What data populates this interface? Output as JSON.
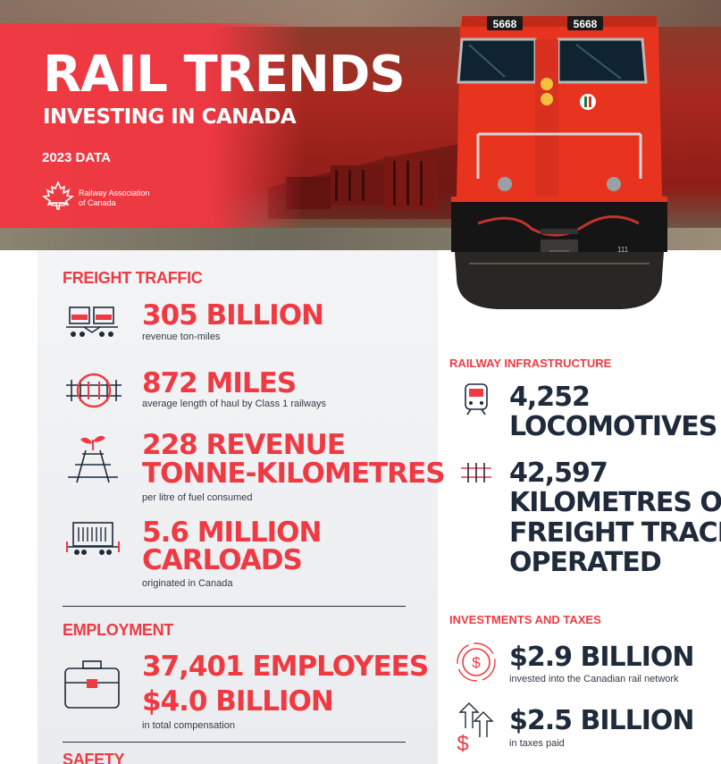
{
  "hero": {
    "title": "RAIL TRENDS",
    "subtitle": "INVESTING IN CANADA",
    "year_label": "2023 DATA",
    "org_line1": "Railway Association",
    "org_line2": "of Canada",
    "loco_number_left": "5668",
    "loco_number_right": "5668",
    "loco_plate": "111"
  },
  "freight": {
    "heading": "FREIGHT TRAFFIC",
    "items": [
      {
        "icon": "freight-wagon-icon",
        "lines": [
          "305 BILLION"
        ],
        "caption": "revenue ton-miles"
      },
      {
        "icon": "track-distance-icon",
        "lines": [
          "872 MILES"
        ],
        "caption": "average length of haul by Class 1 railways"
      },
      {
        "icon": "eco-track-icon",
        "lines": [
          "228 REVENUE",
          "TONNE-KILOMETRES"
        ],
        "caption": "per litre of fuel consumed"
      },
      {
        "icon": "container-car-icon",
        "lines": [
          "5.6 MILLION",
          "CARLOADS"
        ],
        "caption": "originated in Canada"
      }
    ]
  },
  "employment": {
    "heading": "EMPLOYMENT",
    "icon": "briefcase-icon",
    "line1": "37,401 EMPLOYEES",
    "line2": "$4.0 BILLION",
    "caption": "in total compensation"
  },
  "safety": {
    "heading": "SAFETY"
  },
  "infrastructure": {
    "heading": "RAILWAY INFRASTRUCTURE",
    "items": [
      {
        "icon": "locomotive-icon",
        "lines": [
          "4,252",
          "LOCOMOTIVES"
        ]
      },
      {
        "icon": "rail-track-icon",
        "lines": [
          "42,597",
          "KILOMETRES OF",
          "FREIGHT TRACK",
          "OPERATED"
        ]
      }
    ]
  },
  "investments": {
    "heading": "INVESTMENTS AND TAXES",
    "items": [
      {
        "icon": "dollar-coin-icon",
        "value": "$2.9 BILLION",
        "caption": "invested into the Canadian rail network"
      },
      {
        "icon": "dollar-growth-icon",
        "value": "$2.5 BILLION",
        "caption": "in taxes paid"
      }
    ]
  },
  "colors": {
    "accent_red": "#ef3a43",
    "navy": "#1f2a3a",
    "panel_gray": "#eceef1"
  }
}
